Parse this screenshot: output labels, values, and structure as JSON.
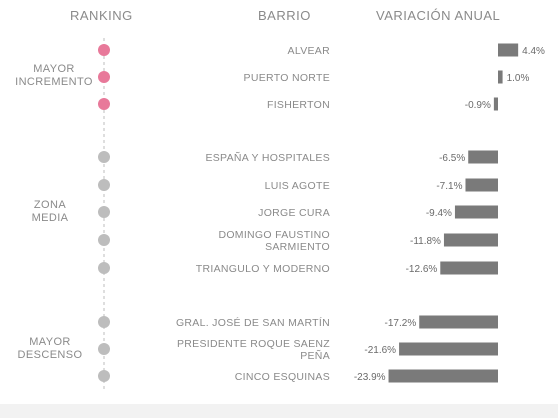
{
  "headers": {
    "ranking": "RANKING",
    "barrio": "BARRIO",
    "variacion": "VARIACIÓN ANUAL"
  },
  "groups": [
    {
      "line1": "MAYOR",
      "line2": "INCREMENTO"
    },
    {
      "line1": "ZONA",
      "line2": "MEDIA"
    },
    {
      "line1": "MAYOR",
      "line2": "DESCENSO"
    }
  ],
  "colors": {
    "increase_dot": "#e8799a",
    "neutral_dot": "#bdbdbd",
    "bar": "#7a7a7a",
    "axis_line": "#dedede"
  },
  "chart_data": {
    "type": "bar",
    "orientation": "horizontal",
    "categories": [
      [
        "ALVEAR"
      ],
      [
        "PUERTO NORTE"
      ],
      [
        "FISHERTON"
      ],
      [
        "ESPAÑA Y HOSPITALES"
      ],
      [
        "LUIS AGOTE"
      ],
      [
        "JORGE CURA"
      ],
      [
        "DOMINGO FAUSTINO",
        "SARMIENTO"
      ],
      [
        "TRIANGULO Y MODERNO"
      ],
      [
        "GRAL. JOSÉ DE SAN MARTÍN"
      ],
      [
        "PRESIDENTE ROQUE SAENZ",
        "PEÑA"
      ],
      [
        "CINCO ESQUINAS"
      ]
    ],
    "values": [
      4.4,
      1.0,
      -0.9,
      -6.5,
      -7.1,
      -9.4,
      -11.8,
      -12.6,
      -17.2,
      -21.6,
      -23.9
    ],
    "value_labels": [
      "4.4%",
      "1.0%",
      "-0.9%",
      "-6.5%",
      "-7.1%",
      "-9.4%",
      "-11.8%",
      "-12.6%",
      "-17.2%",
      "-21.6%",
      "-23.9%"
    ],
    "group_index": [
      0,
      0,
      0,
      1,
      1,
      1,
      1,
      1,
      2,
      2,
      2
    ],
    "xlim": [
      -23.9,
      4.4
    ],
    "grid": false
  }
}
